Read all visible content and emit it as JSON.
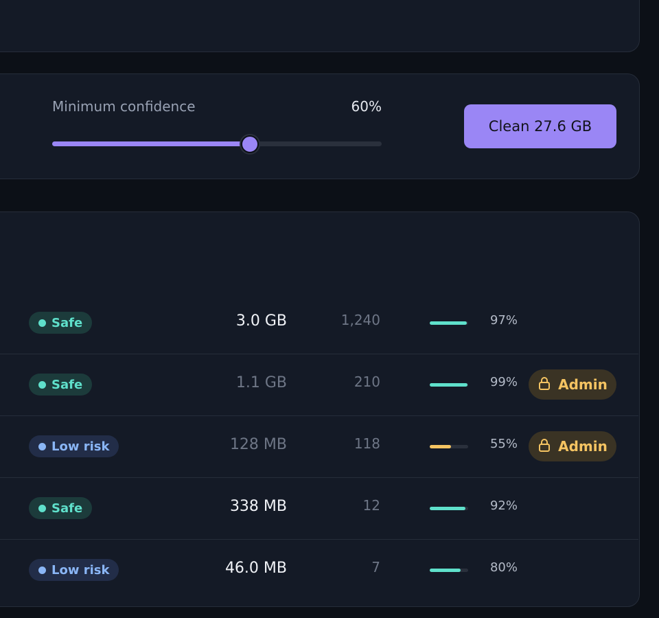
{
  "controls": {
    "min_confidence_label": "Minimum confidence",
    "min_confidence_value": "60%",
    "min_confidence_fraction": 0.6,
    "slider_color": "#9a86f5",
    "clean_button_label": "Clean 27.6 GB"
  },
  "colors": {
    "safe": "#5fe0cb",
    "low_risk": "#8ab6f6",
    "warning": "#f5c462",
    "accent": "#9a86f5"
  },
  "rows": [
    {
      "risk": "Safe",
      "risk_kind": "safe",
      "size": "3.0 GB",
      "size_dim": false,
      "count": "1,240",
      "confidence": "97%",
      "confidence_fraction": 0.97,
      "bar_color": "#5fe0cb",
      "admin": null
    },
    {
      "risk": "Safe",
      "risk_kind": "safe",
      "size": "1.1 GB",
      "size_dim": true,
      "count": "210",
      "confidence": "99%",
      "confidence_fraction": 0.99,
      "bar_color": "#5fe0cb",
      "admin": "Admin"
    },
    {
      "risk": "Low risk",
      "risk_kind": "low",
      "size": "128 MB",
      "size_dim": true,
      "count": "118",
      "confidence": "55%",
      "confidence_fraction": 0.55,
      "bar_color": "#f5c462",
      "admin": "Admin"
    },
    {
      "risk": "Safe",
      "risk_kind": "safe",
      "size": "338 MB",
      "size_dim": false,
      "count": "12",
      "confidence": "92%",
      "confidence_fraction": 0.92,
      "bar_color": "#5fe0cb",
      "admin": null
    },
    {
      "risk": "Low risk",
      "risk_kind": "low",
      "size": "46.0 MB",
      "size_dim": false,
      "count": "7",
      "confidence": "80%",
      "confidence_fraction": 0.8,
      "bar_color": "#5fe0cb",
      "admin": null
    }
  ],
  "icons": {
    "admin": "lock-icon",
    "risk_dot": "status-dot-icon"
  }
}
